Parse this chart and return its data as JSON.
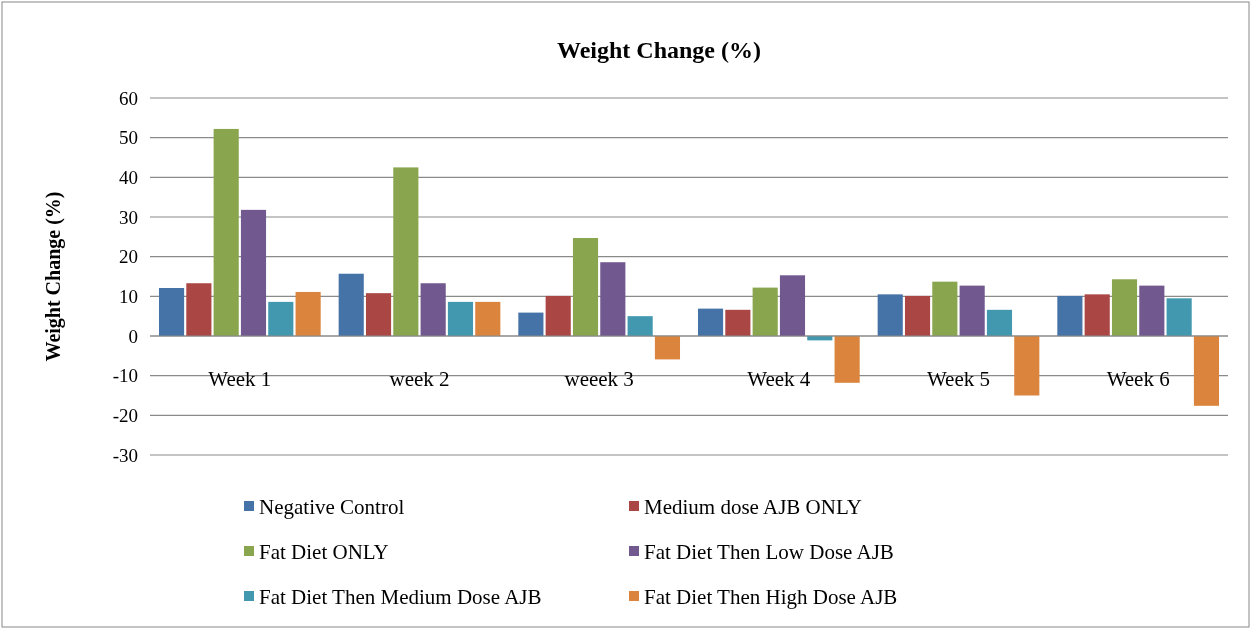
{
  "chart_data": {
    "type": "bar",
    "title": "Weight Change (%)",
    "ylabel": "Weight Change (%)",
    "categories": [
      "Week 1",
      "week 2",
      "weeek 3",
      "Week 4",
      "Week 5",
      "Week 6"
    ],
    "series": [
      {
        "name": "Negative Control",
        "color": "#4572a7",
        "values": [
          12.1,
          15.7,
          5.9,
          6.9,
          10.5,
          10.1
        ]
      },
      {
        "name": "Medium dose AJB ONLY",
        "color": "#aa4643",
        "values": [
          13.3,
          10.8,
          10.1,
          6.6,
          10.1,
          10.5
        ]
      },
      {
        "name": "Fat Diet ONLY",
        "color": "#89a54e",
        "values": [
          52.2,
          42.5,
          24.7,
          12.2,
          13.7,
          14.3
        ]
      },
      {
        "name": "Fat Diet Then Low Dose AJB",
        "color": "#71588f",
        "values": [
          31.8,
          13.3,
          18.6,
          15.3,
          12.7,
          12.7
        ]
      },
      {
        "name": "Fat Diet Then Medium Dose AJB",
        "color": "#4198af",
        "values": [
          8.6,
          8.6,
          5.0,
          -1.1,
          6.6,
          9.5
        ]
      },
      {
        "name": "Fat Diet Then High Dose AJB",
        "color": "#db843d",
        "values": [
          11.1,
          8.6,
          -5.9,
          -11.8,
          -15.0,
          -17.6
        ]
      }
    ],
    "ylim": [
      -30,
      60
    ],
    "yticks": [
      -30,
      -20,
      -10,
      0,
      10,
      20,
      30,
      40,
      50,
      60
    ],
    "grid": "y",
    "legend": "bottom"
  }
}
